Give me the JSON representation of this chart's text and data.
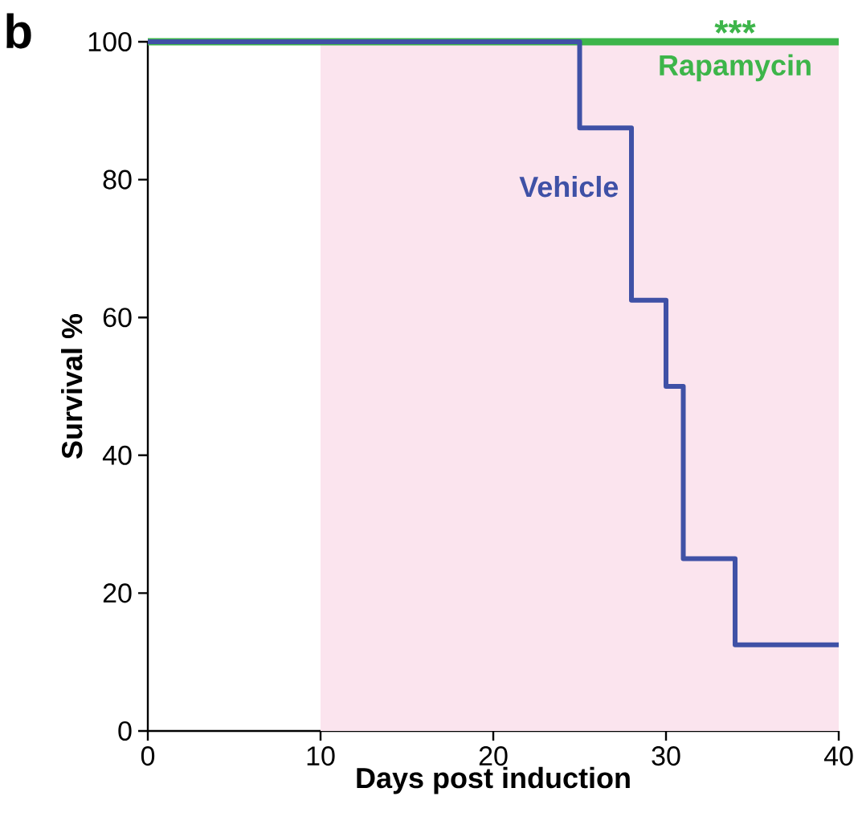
{
  "chart_data": {
    "type": "step",
    "xlabel": "Days post induction",
    "ylabel": "Survival %",
    "annotations": [
      "b",
      "***"
    ],
    "xlim": [
      0,
      40
    ],
    "xticks": [
      0,
      10,
      20,
      30,
      40
    ],
    "ylim": [
      0,
      100
    ],
    "yticks": [
      0,
      20,
      40,
      60,
      80,
      100
    ],
    "bands": [
      {
        "axis": "x",
        "from": 10,
        "to": 40,
        "color": "#fbe4ee"
      }
    ],
    "series": [
      {
        "name": "Rapamycin",
        "color": "#3db54a",
        "x": [
          0,
          40
        ],
        "values": [
          100,
          100
        ]
      },
      {
        "name": "Vehicle",
        "color": "#3f51a6",
        "x": [
          0,
          25,
          28,
          30,
          31,
          34,
          40
        ],
        "values": [
          100,
          87.5,
          62.5,
          50,
          25,
          12.5,
          12.5
        ]
      }
    ]
  }
}
